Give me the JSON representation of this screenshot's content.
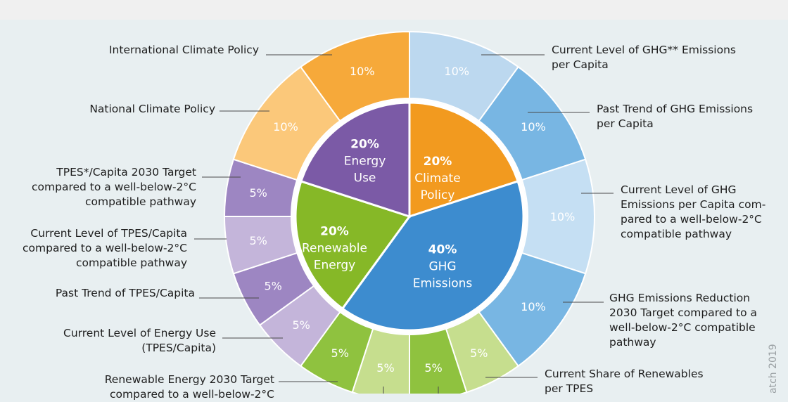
{
  "inner_categories": [
    {
      "percent": "20%",
      "name": [
        "Climate",
        "Policy"
      ],
      "color": "#f29a1f"
    },
    {
      "percent": "40%",
      "name": [
        "GHG",
        "Emissions"
      ],
      "color": "#3d8ccf"
    },
    {
      "percent": "20%",
      "name": [
        "Renewable",
        "Energy"
      ],
      "color": "#86b827"
    },
    {
      "percent": "20%",
      "name": [
        "Energy",
        "Use"
      ],
      "color": "#7b5aa6"
    }
  ],
  "outer_segments": [
    {
      "value": "10%",
      "color": "#bcd8ef"
    },
    {
      "value": "10%",
      "color": "#78b6e3"
    },
    {
      "value": "10%",
      "color": "#c5dff3"
    },
    {
      "value": "10%",
      "color": "#78b6e3"
    },
    {
      "value": "5%",
      "color": "#c6de8e"
    },
    {
      "value": "5%",
      "color": "#8fc23f"
    },
    {
      "value": "5%",
      "color": "#c6de8e"
    },
    {
      "value": "5%",
      "color": "#8fc23f"
    },
    {
      "value": "5%",
      "color": "#c4b5da"
    },
    {
      "value": "5%",
      "color": "#9d86c2"
    },
    {
      "value": "5%",
      "color": "#c4b5da"
    },
    {
      "value": "5%",
      "color": "#9d86c2"
    },
    {
      "value": "10%",
      "color": "#fbc87a"
    },
    {
      "value": "10%",
      "color": "#f6a93a"
    }
  ],
  "indicator_labels": {
    "international_climate_policy": "International Climate Policy",
    "national_climate_policy": "National Climate Policy",
    "tpes_target": [
      "TPES*/Capita 2030 Target",
      "compared to a well-below-2°C",
      "compatible pathway"
    ],
    "tpes_current": [
      "Current Level of TPES/Capita",
      "compared to a well-below-2°C",
      "compatible pathway"
    ],
    "tpes_trend": "Past Trend of TPES/Capita",
    "energy_use_current": [
      "Current Level of Energy Use",
      "(TPES/Capita)"
    ],
    "renewable_target": [
      "Renewable Energy 2030 Target",
      "compared to a well-below-2°C"
    ],
    "ghg_current": [
      "Current Level of GHG** Emissions",
      "per Capita"
    ],
    "ghg_trend": [
      "Past Trend of GHG Emissions",
      "per Capita"
    ],
    "ghg_current_compared": [
      "Current Level of GHG",
      "Emissions per Capita com-",
      "pared to a well-below-2°C",
      "compatible pathway"
    ],
    "ghg_reduction_target": [
      "GHG Emissions Reduction",
      "2030 Target compared to a",
      "well-below-2°C compatible",
      "pathway"
    ],
    "renewables_share": [
      "Current Share of Renewables",
      "per TPES"
    ]
  },
  "source_credit": "atch 2019"
}
